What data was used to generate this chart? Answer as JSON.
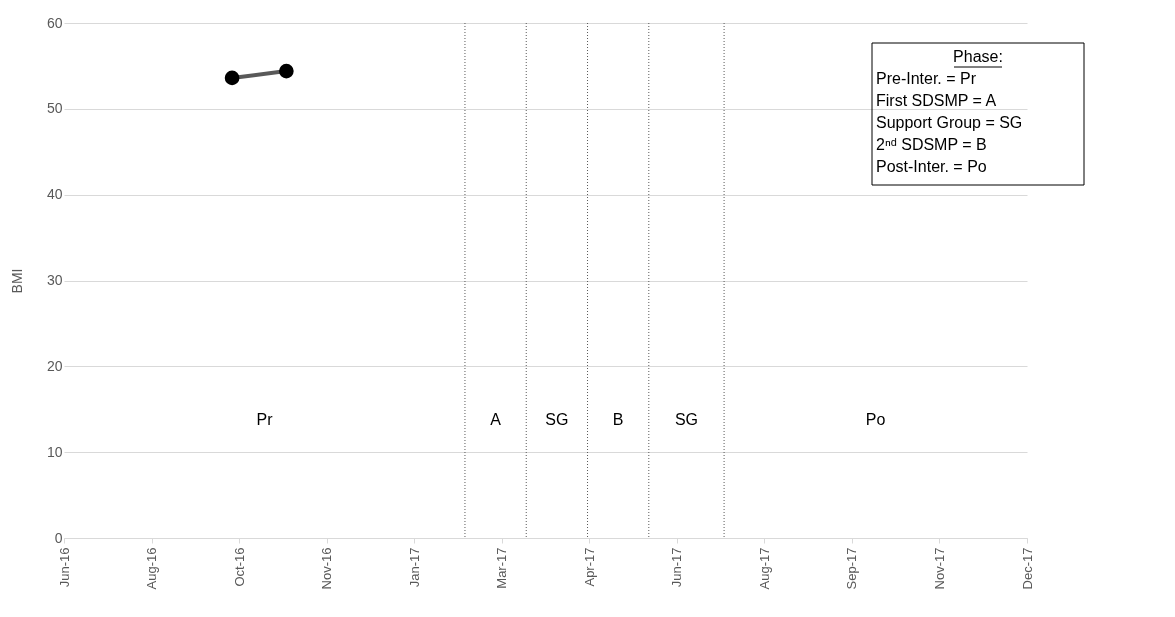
{
  "chart_data": {
    "type": "line",
    "ylabel": "BMI",
    "x": [
      "2016-10-02",
      "2016-11-02"
    ],
    "series": [
      {
        "color": "#595959",
        "values": [
          53.6,
          54.4
        ]
      }
    ],
    "marker": "circle",
    "line_style": "solid",
    "xlim": [
      "2016-06-28",
      "2017-12-30"
    ],
    "xticks": [
      {
        "value": "2016-06-28",
        "label": "Jun-16"
      },
      {
        "value": "2016-08-17",
        "label": "Aug-16"
      },
      {
        "value": "2016-10-06",
        "label": "Oct-16"
      },
      {
        "value": "2016-11-25",
        "label": "Nov-16"
      },
      {
        "value": "2017-01-14",
        "label": "Jan-17"
      },
      {
        "value": "2017-03-05",
        "label": "Mar-17"
      },
      {
        "value": "2017-04-24",
        "label": "Apr-17"
      },
      {
        "value": "2017-06-13",
        "label": "Jun-17"
      },
      {
        "value": "2017-08-02",
        "label": "Aug-17"
      },
      {
        "value": "2017-09-21",
        "label": "Sep-17"
      },
      {
        "value": "2017-11-10",
        "label": "Nov-17"
      },
      {
        "value": "2017-12-30",
        "label": "Dec-17"
      }
    ],
    "ylim": [
      0,
      60
    ],
    "yticks": [
      0,
      10,
      20,
      30,
      40,
      50,
      60
    ],
    "grid": "y",
    "ref_lines": [
      {
        "axis": "x",
        "value": "2017-02-12",
        "color": "#595959",
        "line_style": "dotted"
      },
      {
        "axis": "x",
        "value": "2017-03-19",
        "color": "#595959",
        "line_style": "dotted"
      },
      {
        "axis": "x",
        "value": "2017-04-23",
        "color": "#595959",
        "line_style": "dotted"
      },
      {
        "axis": "x",
        "value": "2017-05-28",
        "color": "#595959",
        "line_style": "dotted"
      },
      {
        "axis": "x",
        "value": "2017-07-10",
        "color": "#595959",
        "line_style": "dotted"
      }
    ],
    "annotations": [
      "Pr",
      "A",
      "SG",
      "B",
      "SG",
      "Po",
      "Phase:",
      "Pre-Inter.        = Pr",
      "First SDSMP     = A",
      "Support Group = SG",
      "2ⁿᵈ SDSMP        = B",
      "Post-Inter.      = Po"
    ]
  }
}
